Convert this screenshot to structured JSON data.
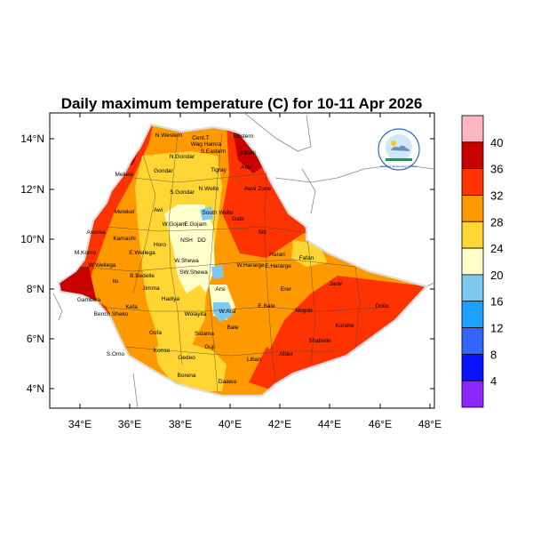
{
  "title": "Daily maximum temperature (C) for 10-11 Apr 2026",
  "x_ticks": [
    "34°E",
    "36°E",
    "38°E",
    "40°E",
    "42°E",
    "44°E",
    "46°E",
    "48°E"
  ],
  "y_ticks": [
    "4°N",
    "6°N",
    "8°N",
    "10°N",
    "12°N",
    "14°N"
  ],
  "colorbar": {
    "labels": [
      "40",
      "36",
      "32",
      "28",
      "24",
      "20",
      "16",
      "12",
      "8",
      "4"
    ],
    "colors": [
      "#ffb6c1",
      "#c80000",
      "#ff3300",
      "#ff9900",
      "#ffd633",
      "#ffffcc",
      "#7ec8f0",
      "#1ea0ff",
      "#3366ff",
      "#0a14ff",
      "#8c28ff"
    ]
  },
  "logo": {
    "text": "Ethiopian Meteorology Institute"
  },
  "regions": [
    {
      "name": "N.Western"
    },
    {
      "name": "Cent.T"
    },
    {
      "name": "Eastern"
    },
    {
      "name": "N.Gondar"
    },
    {
      "name": "S.Eastern"
    },
    {
      "name": "Gondar"
    },
    {
      "name": "Tigray"
    },
    {
      "name": "Wag Hamra"
    },
    {
      "name": "Afar"
    },
    {
      "name": "Kilbati"
    },
    {
      "name": "Mekele"
    },
    {
      "name": "S.Gondar"
    },
    {
      "name": "N.Wello"
    },
    {
      "name": "Awsi Zone"
    },
    {
      "name": "Metekel"
    },
    {
      "name": "Awi"
    },
    {
      "name": "W.Gojam"
    },
    {
      "name": "South Wello"
    },
    {
      "name": "Gabi"
    },
    {
      "name": "E.Gojam"
    },
    {
      "name": "Assosa"
    },
    {
      "name": "Siti"
    },
    {
      "name": "Kamashi"
    },
    {
      "name": "Horo"
    },
    {
      "name": "NSH"
    },
    {
      "name": "DD"
    },
    {
      "name": "M.Komo"
    },
    {
      "name": "E.Wellega"
    },
    {
      "name": "W.Wellega"
    },
    {
      "name": "W.Shewa"
    },
    {
      "name": "W.Hararge"
    },
    {
      "name": "E.Hararge"
    },
    {
      "name": "Fafan"
    },
    {
      "name": "B.Bedelle"
    },
    {
      "name": "Ilu"
    },
    {
      "name": "Jimma"
    },
    {
      "name": "SW.Shewa"
    },
    {
      "name": "Arsi"
    },
    {
      "name": "Erer"
    },
    {
      "name": "Jarar"
    },
    {
      "name": "Gambela"
    },
    {
      "name": "Kefa"
    },
    {
      "name": "Hadiya"
    },
    {
      "name": "Bench Sheko"
    },
    {
      "name": "Wolayita"
    },
    {
      "name": "W.Arsi"
    },
    {
      "name": "E.Bale"
    },
    {
      "name": "Nogob"
    },
    {
      "name": "Dollo"
    },
    {
      "name": "Sidama"
    },
    {
      "name": "Gofa"
    },
    {
      "name": "Bale"
    },
    {
      "name": "Korahe"
    },
    {
      "name": "Shabelle"
    },
    {
      "name": "Guji"
    },
    {
      "name": "Gedeo"
    },
    {
      "name": "Liban"
    },
    {
      "name": "Afder"
    },
    {
      "name": "Borena"
    },
    {
      "name": "Daawa"
    },
    {
      "name": "S.Omo"
    },
    {
      "name": "Konso"
    },
    {
      "name": "Harari"
    }
  ]
}
